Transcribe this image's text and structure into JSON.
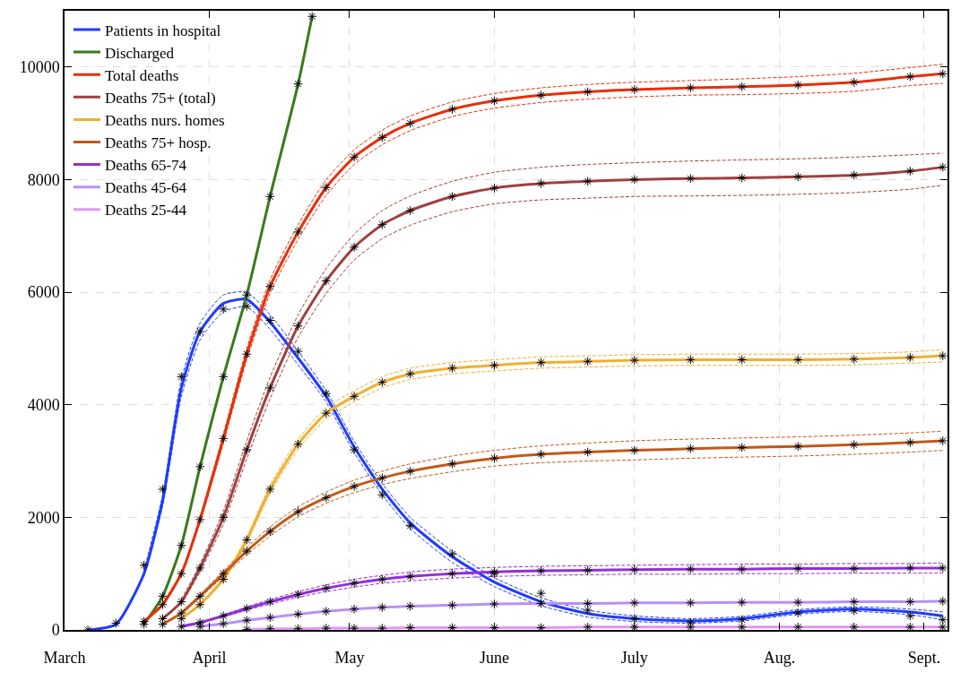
{
  "chart_data": {
    "type": "line",
    "x": [
      "--03-06",
      "--03-12",
      "--03-18",
      "--03-22",
      "--03-26",
      "--03-30",
      "--04-04",
      "--04-09",
      "--04-14",
      "--04-20",
      "--04-26",
      "--05-02",
      "--05-08",
      "--05-14",
      "--05-23",
      "--06-01",
      "--06-11",
      "--06-21",
      "--07-01",
      "--07-13",
      "--07-24",
      "--08-05",
      "--08-17",
      "--08-29",
      "--09-05"
    ],
    "xlim": [
      "--03-01",
      "--09-06"
    ],
    "xticks": [
      {
        "value": "--03-01",
        "label": "March"
      },
      {
        "value": "--04-01",
        "label": "April"
      },
      {
        "value": "--05-01",
        "label": "May"
      },
      {
        "value": "--06-01",
        "label": "June"
      },
      {
        "value": "--07-01",
        "label": "July"
      },
      {
        "value": "--08-01",
        "label": "Aug."
      },
      {
        "value": "--09-01",
        "label": "Sept."
      }
    ],
    "ylim": [
      0,
      11000
    ],
    "yticks": [
      0,
      2000,
      4000,
      6000,
      8000,
      10000
    ],
    "grid": true,
    "legend": "top left",
    "line_style": "solid",
    "series": [
      {
        "name": "Patients in hospital",
        "color": "#1f3cff",
        "values": [
          0,
          100,
          1000,
          2300,
          4300,
          5300,
          5800,
          5870,
          5470,
          4830,
          4150,
          3250,
          2500,
          1900,
          1300,
          850,
          500,
          290,
          200,
          160,
          200,
          320,
          370,
          320,
          250
        ]
      },
      {
        "type": "line",
        "line_style": "dashed",
        "color": "#1f3cff",
        "values": [
          null,
          null,
          1050,
          2400,
          4450,
          5450,
          5950,
          6000,
          5600,
          4950,
          4250,
          3350,
          2600,
          2000,
          1400,
          930,
          570,
          350,
          250,
          200,
          240,
          360,
          410,
          370,
          320
        ]
      },
      {
        "type": "line",
        "line_style": "dashed",
        "color": "#1f3cff",
        "values": [
          null,
          null,
          950,
          2200,
          4150,
          5150,
          5650,
          5740,
          5340,
          4710,
          4050,
          3150,
          2400,
          1800,
          1200,
          770,
          430,
          230,
          150,
          120,
          160,
          280,
          330,
          270,
          180
        ]
      },
      {
        "name": "Discharged",
        "color": "#3a7a1a",
        "x": [
          "--03-18",
          "--03-22",
          "--03-26",
          "--03-30",
          "--04-04",
          "--04-09",
          "--04-14",
          "--04-20",
          "--04-23"
        ],
        "values": [
          100,
          600,
          1500,
          2900,
          4500,
          5950,
          7700,
          9700,
          10900
        ]
      },
      {
        "name": "Total deaths",
        "color": "#e8300a",
        "values": [
          null,
          null,
          150,
          450,
          1000,
          1960,
          3400,
          4900,
          6100,
          7070,
          7860,
          8400,
          8750,
          9000,
          9250,
          9400,
          9500,
          9560,
          9600,
          9630,
          9650,
          9680,
          9730,
          9830,
          9880
        ]
      },
      {
        "type": "line",
        "line_style": "dashed",
        "color": "#e8300a",
        "values": [
          null,
          null,
          null,
          470,
          1030,
          2010,
          3480,
          5000,
          6220,
          7200,
          8000,
          8530,
          8880,
          9130,
          9380,
          9530,
          9630,
          9690,
          9730,
          9760,
          9790,
          9830,
          9890,
          9990,
          10050
        ]
      },
      {
        "type": "line",
        "line_style": "dashed",
        "color": "#e8300a",
        "values": [
          null,
          null,
          null,
          430,
          970,
          1910,
          3320,
          4800,
          5980,
          6940,
          7720,
          8270,
          8620,
          8870,
          9120,
          9270,
          9370,
          9430,
          9470,
          9500,
          9510,
          9530,
          9570,
          9670,
          9710
        ]
      },
      {
        "name": "Deaths 75+ (total)",
        "color": "#a0403f",
        "values": [
          null,
          null,
          null,
          200,
          500,
          1100,
          2000,
          3200,
          4300,
          5400,
          6200,
          6800,
          7200,
          7450,
          7700,
          7850,
          7930,
          7970,
          8000,
          8020,
          8030,
          8050,
          8080,
          8150,
          8220
        ]
      },
      {
        "type": "line",
        "line_style": "dashed",
        "color": "#a0403f",
        "values": [
          null,
          null,
          null,
          null,
          540,
          1170,
          2120,
          3360,
          4490,
          5600,
          6420,
          7030,
          7450,
          7710,
          7970,
          8130,
          8220,
          8270,
          8300,
          8330,
          8350,
          8370,
          8400,
          8440,
          8470
        ]
      },
      {
        "type": "line",
        "line_style": "dashed",
        "color": "#a0403f",
        "values": [
          null,
          null,
          null,
          null,
          460,
          1030,
          1880,
          3040,
          4110,
          5200,
          5980,
          6570,
          6950,
          7190,
          7430,
          7570,
          7640,
          7670,
          7700,
          7710,
          7720,
          7740,
          7770,
          7830,
          7900
        ]
      },
      {
        "name": "Deaths nurs. homes",
        "color": "#f0b030",
        "values": [
          null,
          null,
          null,
          null,
          200,
          450,
          900,
          1600,
          2500,
          3300,
          3850,
          4150,
          4400,
          4550,
          4650,
          4700,
          4750,
          4770,
          4790,
          4800,
          4800,
          4800,
          4810,
          4840,
          4870
        ]
      },
      {
        "type": "line",
        "line_style": "dashed",
        "color": "#f0b030",
        "values": [
          null,
          null,
          null,
          null,
          null,
          470,
          930,
          1650,
          2570,
          3390,
          3950,
          4250,
          4500,
          4650,
          4750,
          4800,
          4850,
          4870,
          4890,
          4900,
          4900,
          4900,
          4910,
          4940,
          4980
        ]
      },
      {
        "type": "line",
        "line_style": "dashed",
        "color": "#f0b030",
        "values": [
          null,
          null,
          null,
          null,
          null,
          430,
          870,
          1550,
          2430,
          3210,
          3750,
          4050,
          4300,
          4450,
          4550,
          4600,
          4650,
          4670,
          4690,
          4700,
          4700,
          4700,
          4710,
          4740,
          4760
        ]
      },
      {
        "name": "Deaths 75+ hosp.",
        "color": "#c05a1a",
        "values": [
          null,
          null,
          null,
          100,
          300,
          600,
          1000,
          1400,
          1750,
          2100,
          2350,
          2550,
          2700,
          2820,
          2950,
          3050,
          3120,
          3160,
          3190,
          3220,
          3240,
          3260,
          3290,
          3330,
          3360
        ]
      },
      {
        "type": "line",
        "line_style": "dashed",
        "color": "#c05a1a",
        "values": [
          null,
          null,
          null,
          null,
          320,
          630,
          1050,
          1470,
          1830,
          2190,
          2450,
          2660,
          2820,
          2950,
          3090,
          3190,
          3270,
          3320,
          3360,
          3390,
          3410,
          3430,
          3460,
          3500,
          3530
        ]
      },
      {
        "type": "line",
        "line_style": "dashed",
        "color": "#c05a1a",
        "values": [
          null,
          null,
          null,
          null,
          280,
          570,
          950,
          1330,
          1670,
          2010,
          2250,
          2440,
          2580,
          2690,
          2810,
          2910,
          2970,
          3000,
          3020,
          3050,
          3070,
          3090,
          3120,
          3160,
          3190
        ]
      },
      {
        "name": "Deaths 65-74",
        "color": "#9030d8",
        "values": [
          null,
          null,
          null,
          null,
          60,
          130,
          250,
          380,
          500,
          630,
          740,
          830,
          900,
          950,
          1000,
          1030,
          1050,
          1060,
          1070,
          1080,
          1080,
          1090,
          1090,
          1100,
          1100
        ]
      },
      {
        "type": "line",
        "line_style": "dashed",
        "color": "#9030d8",
        "values": [
          null,
          null,
          null,
          null,
          null,
          null,
          270,
          410,
          540,
          680,
          800,
          900,
          970,
          1030,
          1080,
          1110,
          1130,
          1140,
          1150,
          1160,
          1170,
          1170,
          1180,
          1180,
          1190
        ]
      },
      {
        "type": "line",
        "line_style": "dashed",
        "color": "#9030d8",
        "values": [
          null,
          null,
          null,
          null,
          null,
          null,
          230,
          350,
          460,
          580,
          680,
          760,
          830,
          870,
          920,
          950,
          970,
          980,
          990,
          990,
          1000,
          1000,
          1010,
          1010,
          1010
        ]
      },
      {
        "name": "Deaths 45-64",
        "color": "#b890f8",
        "values": [
          null,
          null,
          null,
          null,
          null,
          60,
          110,
          170,
          220,
          280,
          330,
          370,
          400,
          420,
          440,
          460,
          470,
          470,
          480,
          480,
          490,
          490,
          500,
          500,
          510
        ]
      },
      {
        "name": "Deaths 25-44",
        "color": "#e098f0",
        "values": [
          null,
          null,
          null,
          null,
          null,
          null,
          null,
          10,
          20,
          20,
          30,
          30,
          30,
          40,
          40,
          40,
          40,
          50,
          50,
          50,
          50,
          50,
          50,
          50,
          50
        ]
      },
      {
        "type": "scatter",
        "marker": "cross",
        "color": "#000000",
        "values": [
          0,
          120,
          1150,
          2500,
          4500,
          5300,
          5700,
          5750,
          5500,
          4950,
          4200,
          3200,
          2400,
          1850,
          1350,
          1000,
          650,
          350,
          200,
          130,
          180,
          300,
          340,
          250,
          180
        ]
      },
      {
        "type": "scatter",
        "marker": "cross",
        "color": "#000000",
        "x": [
          "--03-18",
          "--03-22",
          "--03-26",
          "--03-30",
          "--04-04",
          "--04-09",
          "--04-14",
          "--04-20",
          "--04-23"
        ],
        "values": [
          100,
          600,
          1500,
          2900,
          4500,
          5950,
          7700,
          9700,
          10900
        ]
      },
      {
        "type": "scatter",
        "marker": "cross",
        "color": "#000000",
        "values": [
          null,
          null,
          150,
          450,
          1000,
          1960,
          3400,
          4900,
          6100,
          7070,
          7860,
          8400,
          8750,
          9000,
          9250,
          9400,
          9500,
          9560,
          9600,
          9630,
          9650,
          9680,
          9730,
          9830,
          9880
        ]
      },
      {
        "type": "scatter",
        "marker": "cross",
        "color": "#000000",
        "values": [
          null,
          null,
          null,
          200,
          500,
          1100,
          2000,
          3200,
          4300,
          5400,
          6200,
          6800,
          7200,
          7450,
          7700,
          7850,
          7930,
          7970,
          8000,
          8020,
          8030,
          8050,
          8080,
          8150,
          8220
        ]
      },
      {
        "type": "scatter",
        "marker": "cross",
        "color": "#000000",
        "values": [
          null,
          null,
          null,
          null,
          200,
          450,
          900,
          1600,
          2500,
          3300,
          3850,
          4150,
          4400,
          4550,
          4650,
          4700,
          4750,
          4770,
          4790,
          4800,
          4800,
          4800,
          4810,
          4840,
          4870
        ]
      },
      {
        "type": "scatter",
        "marker": "cross",
        "color": "#000000",
        "values": [
          null,
          null,
          null,
          100,
          300,
          600,
          1000,
          1400,
          1750,
          2100,
          2350,
          2550,
          2700,
          2820,
          2950,
          3050,
          3120,
          3160,
          3190,
          3220,
          3240,
          3260,
          3290,
          3330,
          3360
        ]
      },
      {
        "type": "scatter",
        "marker": "cross",
        "color": "#000000",
        "values": [
          null,
          null,
          null,
          null,
          60,
          130,
          250,
          380,
          500,
          630,
          740,
          830,
          900,
          950,
          1000,
          1030,
          1050,
          1060,
          1070,
          1080,
          1080,
          1090,
          1090,
          1100,
          1100
        ]
      },
      {
        "type": "scatter",
        "marker": "cross",
        "color": "#000000",
        "values": [
          null,
          null,
          null,
          null,
          null,
          60,
          110,
          170,
          220,
          280,
          330,
          370,
          400,
          420,
          440,
          460,
          470,
          470,
          480,
          480,
          490,
          490,
          500,
          500,
          510
        ]
      },
      {
        "type": "scatter",
        "marker": "cross",
        "color": "#000000",
        "values": [
          null,
          null,
          null,
          null,
          null,
          null,
          null,
          10,
          20,
          20,
          30,
          30,
          30,
          40,
          40,
          40,
          40,
          50,
          50,
          50,
          50,
          50,
          50,
          50,
          50
        ]
      }
    ]
  }
}
